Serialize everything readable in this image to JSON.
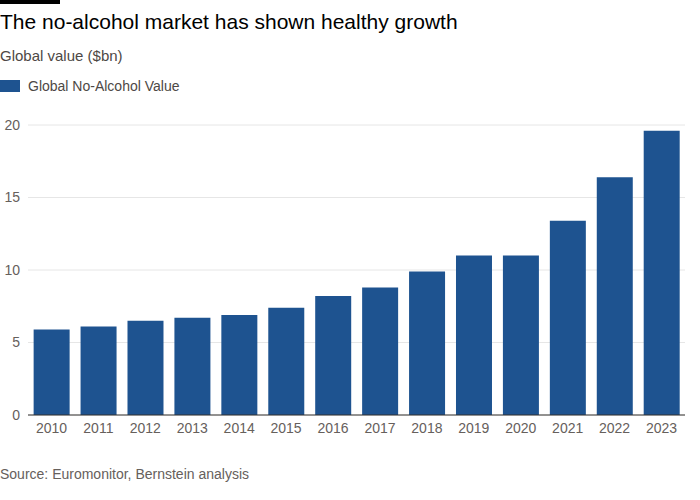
{
  "chart_data": {
    "type": "bar",
    "title": "The no-alcohol market has shown healthy growth",
    "subtitle": "Global value ($bn)",
    "source": "Source: Euromonitor, Bernstein analysis",
    "categories": [
      "2010",
      "2011",
      "2012",
      "2013",
      "2014",
      "2015",
      "2016",
      "2017",
      "2018",
      "2019",
      "2020",
      "2021",
      "2022",
      "2023"
    ],
    "series": [
      {
        "name": "Global No-Alcohol Value",
        "color": "#1e5390",
        "values": [
          5.9,
          6.1,
          6.5,
          6.7,
          6.9,
          7.4,
          8.2,
          8.8,
          9.9,
          11.0,
          11.0,
          13.4,
          16.4,
          19.6
        ]
      }
    ],
    "ylim": [
      0,
      20
    ],
    "yticks": [
      0,
      5,
      10,
      15,
      20
    ],
    "grid": true,
    "legend": "top-left"
  }
}
